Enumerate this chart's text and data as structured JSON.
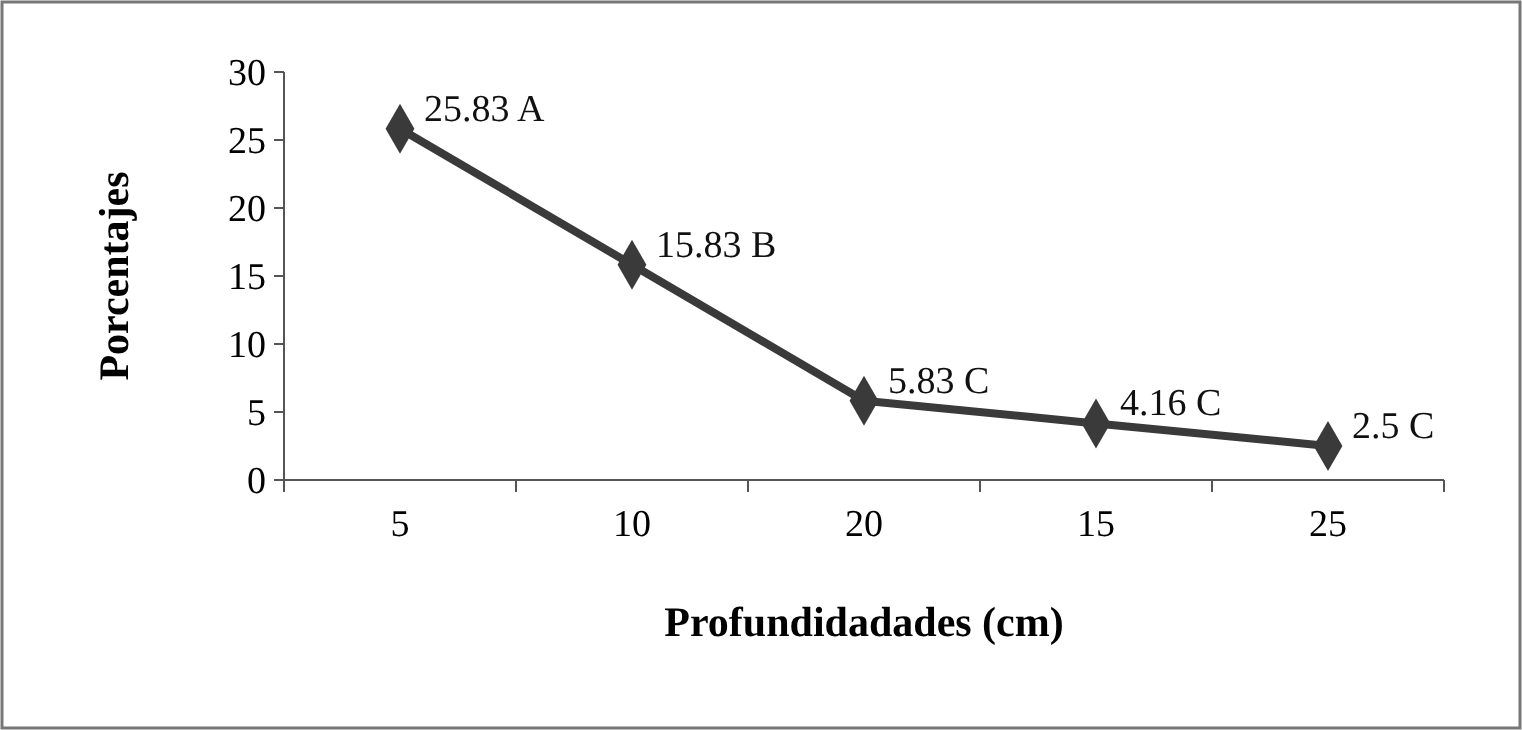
{
  "chart_data": {
    "type": "line",
    "xlabel": "Profundidadades (cm)",
    "ylabel": "Porcentajes",
    "categories": [
      "5",
      "10",
      "20",
      "15",
      "25"
    ],
    "series": [
      {
        "color": "#3a3a3a",
        "values": [
          25.83,
          15.83,
          5.83,
          4.16,
          2.5
        ],
        "value_labels": [
          "25.83 A",
          "15.83 B",
          "5.83 C",
          "4.16 C",
          "2.5 C"
        ]
      }
    ],
    "ylim": [
      0,
      30
    ],
    "yticks": [
      0,
      5,
      10,
      15,
      20,
      25,
      30
    ],
    "grid": false,
    "marker": "diamond",
    "line_style": "solid"
  }
}
